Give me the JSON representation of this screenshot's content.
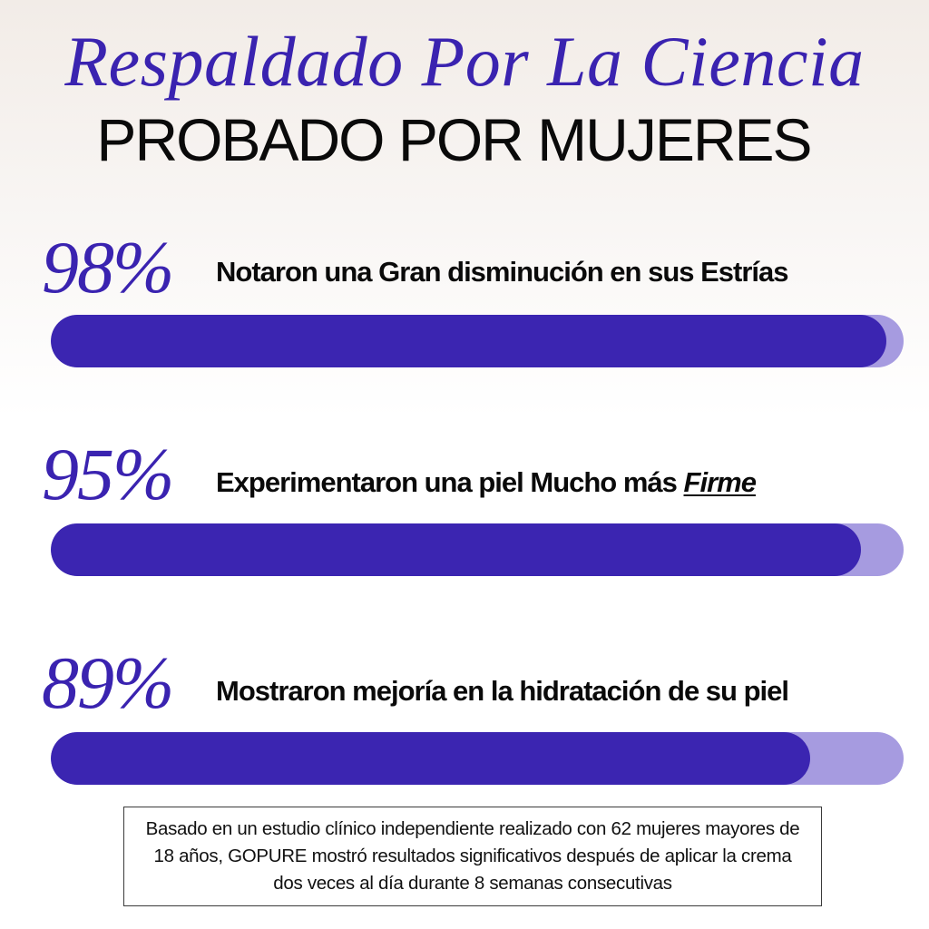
{
  "header": {
    "title": "Respaldado Por La Ciencia",
    "subtitle": "PROBADO POR MUJERES"
  },
  "stats": [
    {
      "percent_label": "98%",
      "value": 98,
      "claim": "Notaron una Gran disminución en sus Estrías",
      "claim_emphasis": ""
    },
    {
      "percent_label": "95%",
      "value": 95,
      "claim": "Experimentaron una piel Mucho más ",
      "claim_emphasis": "Firme"
    },
    {
      "percent_label": "89%",
      "value": 89,
      "claim": "Mostraron mejoría en la hidratación de  su piel",
      "claim_emphasis": ""
    }
  ],
  "footnote": "Basado en un estudio clínico independiente realizado con 62 mujeres mayores de 18 años, GOPURE mostró resultados significativos después de aplicar la crema dos veces al día durante 8 semanas consecutivas",
  "colors": {
    "accent": "#3a23b0",
    "bar_fill": "#3b25b1",
    "bar_track": "#a69be0"
  }
}
